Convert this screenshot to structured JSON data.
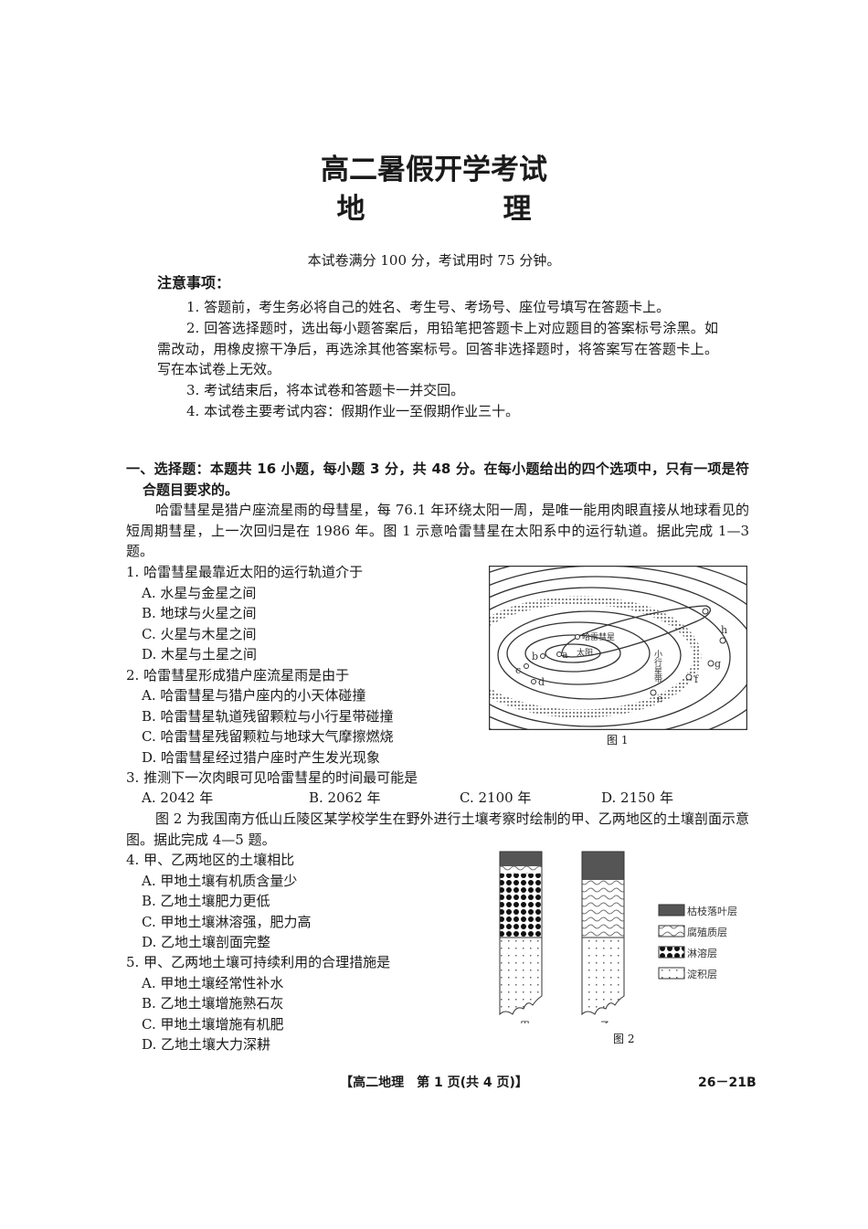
{
  "header": {
    "title": "高二暑假开学考试",
    "subject": "地　理",
    "info": "本试卷满分 100 分，考试用时 75 分钟。"
  },
  "notice": {
    "heading": "注意事项：",
    "items": [
      "1. 答题前，考生务必将自己的姓名、考生号、考场号、座位号填写在答题卡上。",
      "2. 回答选择题时，选出每小题答案后，用铅笔把答题卡上对应题目的答案标号涂黑。如需改动，用橡皮擦干净后，再选涂其他答案标号。回答非选择题时，将答案写在答题卡上。写在本试卷上无效。",
      "3. 考试结束后，将本试卷和答题卡一并交回。",
      "4. 本试卷主要考试内容：假期作业一至假期作业三十。"
    ]
  },
  "section": {
    "heading": "一、选择题：本题共 16 小题，每小题 3 分，共 48 分。在每小题给出的四个选项中，只有一项是符合题目要求的。"
  },
  "passage1": "哈雷彗星是猎户座流星雨的母彗星，每 76.1 年环绕太阳一周，是唯一能用肉眼直接从地球看见的短周期彗星，上一次回归是在 1986 年。图 1 示意哈雷彗星在太阳系中的运行轨道。据此完成 1—3 题。",
  "questions": [
    {
      "stem": "1. 哈雷彗星最靠近太阳的运行轨道介于",
      "options": [
        "A. 水星与金星之间",
        "B. 地球与火星之间",
        "C. 火星与木星之间",
        "D. 木星与土星之间"
      ]
    },
    {
      "stem": "2. 哈雷彗星形成猎户座流星雨是由于",
      "options": [
        "A. 哈雷彗星与猎户座内的小天体碰撞",
        "B. 哈雷彗星轨道残留颗粒与小行星带碰撞",
        "C. 哈雷彗星残留颗粒与地球大气摩擦燃烧",
        "D. 哈雷彗星经过猎户座时产生发光现象"
      ]
    },
    {
      "stem": "3. 推测下一次肉眼可见哈雷彗星的时间最可能是",
      "options": [
        "A. 2042 年",
        "B. 2062 年",
        "C. 2100 年",
        "D. 2150 年"
      ]
    },
    {
      "stem": "4. 甲、乙两地区的土壤相比",
      "options": [
        "A. 甲地土壤有机质含量少",
        "B. 乙地土壤肥力更低",
        "C. 甲地土壤淋溶强，肥力高",
        "D. 乙地土壤剖面完整"
      ]
    },
    {
      "stem": "5. 甲、乙两地土壤可持续利用的合理措施是",
      "options": [
        "A. 甲地土壤经常性补水",
        "B. 乙地土壤增施熟石灰",
        "C. 甲地土壤增施有机肥",
        "D. 乙地土壤大力深耕"
      ]
    }
  ],
  "passage2": "图 2 为我国南方低山丘陵区某学校学生在野外进行土壤考察时绘制的甲、乙两地区的土壤剖面示意图。据此完成 4—5 题。",
  "figure1": {
    "caption": "图 1",
    "labels": {
      "comet": "哈雷彗星",
      "sun": "太阳",
      "belt": "小行星带",
      "planets": [
        "a",
        "b",
        "c",
        "d",
        "e",
        "f",
        "g",
        "h"
      ]
    }
  },
  "figure2": {
    "caption": "图 2",
    "columns": [
      "甲",
      "乙"
    ],
    "legend": [
      "枯枝落叶层",
      "腐殖质层",
      "淋溶层",
      "淀积层"
    ]
  },
  "footer": {
    "center": "【高二地理　第 1 页(共 4 页)】",
    "code": "26－21B"
  }
}
